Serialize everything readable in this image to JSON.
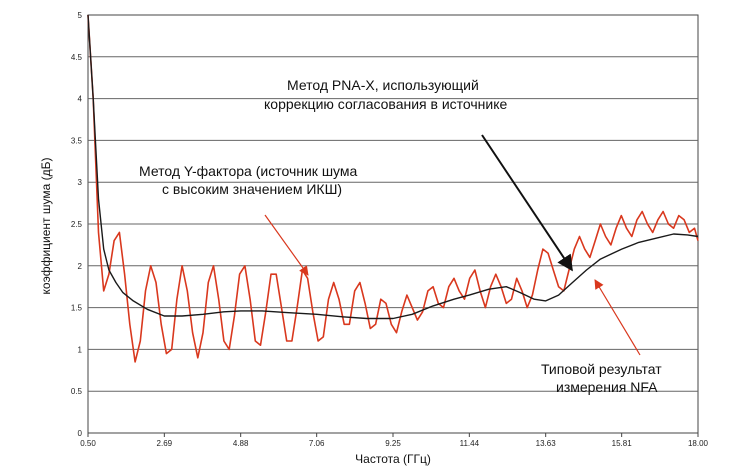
{
  "chart_data": {
    "type": "line",
    "xlabel": "Частота (ГГц)",
    "ylabel": "коэффициент шума (дБ)",
    "xlim": [
      0.5,
      18.0
    ],
    "ylim": [
      0,
      5
    ],
    "x_ticks": [
      "0.50",
      "2.69",
      "4.88",
      "7.06",
      "9.25",
      "11.44",
      "13.63",
      "15.81",
      "18.00"
    ],
    "y_ticks": [
      "0",
      "0.5",
      "1",
      "1.5",
      "2",
      "2.5",
      "3",
      "3.5",
      "4",
      "4.5",
      "5"
    ],
    "grid": "horizontal",
    "series": [
      {
        "color": "#d9381e",
        "x": [
          0.5,
          0.65,
          0.8,
          0.95,
          1.1,
          1.25,
          1.4,
          1.55,
          1.7,
          1.85,
          2.0,
          2.15,
          2.3,
          2.45,
          2.6,
          2.75,
          2.9,
          3.05,
          3.2,
          3.35,
          3.5,
          3.65,
          3.8,
          3.95,
          4.1,
          4.25,
          4.4,
          4.55,
          4.7,
          4.85,
          5.0,
          5.15,
          5.3,
          5.45,
          5.6,
          5.75,
          5.9,
          6.05,
          6.2,
          6.35,
          6.5,
          6.65,
          6.8,
          6.95,
          7.1,
          7.25,
          7.4,
          7.55,
          7.7,
          7.85,
          8.0,
          8.15,
          8.3,
          8.45,
          8.6,
          8.75,
          8.9,
          9.05,
          9.2,
          9.35,
          9.5,
          9.65,
          9.8,
          9.95,
          10.1,
          10.25,
          10.4,
          10.55,
          10.7,
          10.85,
          11.0,
          11.15,
          11.3,
          11.45,
          11.6,
          11.75,
          11.9,
          12.05,
          12.2,
          12.35,
          12.5,
          12.65,
          12.8,
          12.95,
          13.1,
          13.25,
          13.4,
          13.55,
          13.7,
          13.85,
          14.0,
          14.15,
          14.3,
          14.45,
          14.6,
          14.75,
          14.9,
          15.05,
          15.2,
          15.35,
          15.5,
          15.65,
          15.8,
          15.95,
          16.1,
          16.25,
          16.4,
          16.55,
          16.7,
          16.85,
          17.0,
          17.15,
          17.3,
          17.45,
          17.6,
          17.75,
          17.9,
          18.0
        ],
        "y": [
          5.0,
          4.0,
          2.4,
          1.7,
          1.9,
          2.3,
          2.4,
          1.9,
          1.3,
          0.85,
          1.1,
          1.7,
          2.0,
          1.8,
          1.3,
          0.95,
          1.0,
          1.6,
          2.0,
          1.7,
          1.2,
          0.9,
          1.2,
          1.8,
          2.0,
          1.6,
          1.1,
          1.0,
          1.4,
          1.9,
          2.0,
          1.6,
          1.1,
          1.05,
          1.45,
          1.9,
          1.9,
          1.5,
          1.1,
          1.1,
          1.5,
          1.95,
          1.85,
          1.45,
          1.1,
          1.15,
          1.6,
          1.8,
          1.6,
          1.3,
          1.3,
          1.7,
          1.8,
          1.55,
          1.25,
          1.3,
          1.6,
          1.55,
          1.3,
          1.2,
          1.45,
          1.65,
          1.5,
          1.35,
          1.45,
          1.7,
          1.75,
          1.55,
          1.5,
          1.75,
          1.85,
          1.7,
          1.6,
          1.85,
          1.95,
          1.7,
          1.5,
          1.75,
          1.9,
          1.75,
          1.55,
          1.6,
          1.85,
          1.7,
          1.5,
          1.65,
          1.95,
          2.2,
          2.15,
          1.95,
          1.75,
          1.7,
          1.95,
          2.2,
          2.35,
          2.2,
          2.1,
          2.3,
          2.5,
          2.35,
          2.25,
          2.45,
          2.6,
          2.45,
          2.35,
          2.55,
          2.65,
          2.5,
          2.4,
          2.55,
          2.65,
          2.5,
          2.45,
          2.6,
          2.55,
          2.4,
          2.45,
          2.3
        ]
      },
      {
        "color": "#1a1a1a",
        "x": [
          0.5,
          0.65,
          0.8,
          0.95,
          1.1,
          1.3,
          1.5,
          1.8,
          2.2,
          2.69,
          3.2,
          3.8,
          4.4,
          4.88,
          5.5,
          6.2,
          7.06,
          7.8,
          8.5,
          9.25,
          9.8,
          10.4,
          11.0,
          11.44,
          12.0,
          12.5,
          12.9,
          13.3,
          13.63,
          14.0,
          14.4,
          14.8,
          15.2,
          15.81,
          16.3,
          16.8,
          17.3,
          17.7,
          18.0
        ],
        "y": [
          5.0,
          4.0,
          2.8,
          2.2,
          1.95,
          1.8,
          1.68,
          1.58,
          1.48,
          1.4,
          1.4,
          1.42,
          1.45,
          1.46,
          1.46,
          1.44,
          1.42,
          1.39,
          1.37,
          1.37,
          1.42,
          1.52,
          1.6,
          1.65,
          1.72,
          1.75,
          1.68,
          1.6,
          1.58,
          1.65,
          1.8,
          1.95,
          2.08,
          2.2,
          2.28,
          2.33,
          2.38,
          2.37,
          2.35
        ]
      }
    ]
  },
  "annotations": {
    "pna_line1": "Метод PNA-X, использующий",
    "pna_line2": "коррекцию согласования в источнике",
    "yfactor_line1": "Метод Y-фактора (источник шума",
    "yfactor_line2": "с высоким значением ИКШ)",
    "nfa_line1": "Типовой результат",
    "nfa_line2": "измерения NFA"
  }
}
